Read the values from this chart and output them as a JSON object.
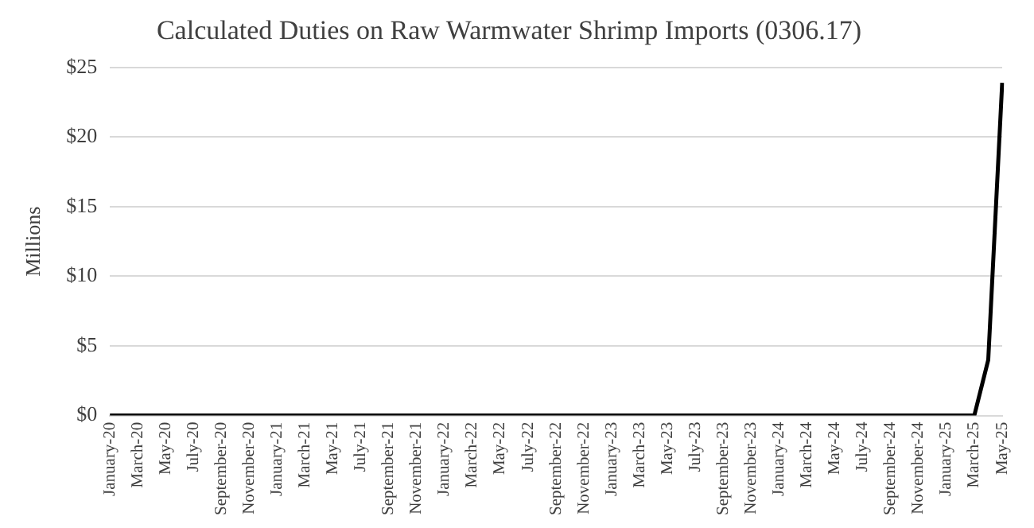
{
  "chart_data": {
    "type": "line",
    "title": "Calculated Duties on Raw Warmwater Shrimp Imports (0306.17)",
    "ylabel": "Millions",
    "categories": [
      "January-20",
      null,
      "March-20",
      null,
      "May-20",
      null,
      "July-20",
      null,
      "September-20",
      null,
      "November-20",
      null,
      "January-21",
      null,
      "March-21",
      null,
      "May-21",
      null,
      "July-21",
      null,
      "September-21",
      null,
      "November-21",
      null,
      "January-22",
      null,
      "March-22",
      null,
      "May-22",
      null,
      "July-22",
      null,
      "September-22",
      null,
      "November-22",
      null,
      "January-23",
      null,
      "March-23",
      null,
      "May-23",
      null,
      "July-23",
      null,
      "September-23",
      null,
      "November-23",
      null,
      "January-24",
      null,
      "March-24",
      null,
      "May-24",
      null,
      "July-24",
      null,
      "September-24",
      null,
      "November-24",
      null,
      "January-25",
      null,
      "March-25",
      null,
      "May-25"
    ],
    "series": [
      {
        "color": "#000000",
        "values": [
          0,
          0,
          0,
          0,
          0,
          0,
          0,
          0,
          0,
          0,
          0,
          0,
          0,
          0,
          0,
          0,
          0,
          0,
          0,
          0,
          0,
          0,
          0,
          0,
          0,
          0,
          0,
          0,
          0,
          0,
          0,
          0,
          0,
          0,
          0,
          0,
          0,
          0,
          0,
          0,
          0,
          0,
          0,
          0,
          0,
          0,
          0,
          0,
          0,
          0,
          0,
          0,
          0,
          0,
          0,
          0,
          0,
          0,
          0,
          0,
          0,
          0,
          0,
          4,
          23.9
        ]
      }
    ],
    "ylim": [
      0,
      25
    ],
    "yticks": [
      {
        "value": 0,
        "label": "$0"
      },
      {
        "value": 5,
        "label": "$5"
      },
      {
        "value": 10,
        "label": "$10"
      },
      {
        "value": 15,
        "label": "$15"
      },
      {
        "value": 20,
        "label": "$20"
      },
      {
        "value": 25,
        "label": "$25"
      }
    ],
    "grid": "y",
    "legend": false,
    "marker": "none",
    "line_style": "solid"
  }
}
